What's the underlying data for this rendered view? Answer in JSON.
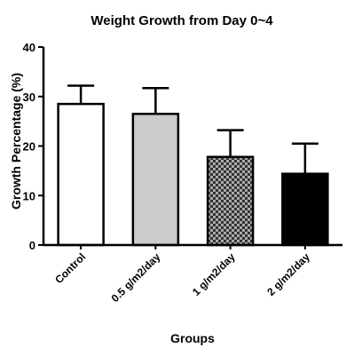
{
  "chart_data": {
    "type": "bar",
    "title": "Weight Growth from Day 0~4",
    "xlabel": "Groups",
    "ylabel": "Growth Percentage (%)",
    "ylim": [
      0,
      40
    ],
    "yticks": [
      0,
      10,
      20,
      30,
      40
    ],
    "categories": [
      "Control",
      "0.5 g/m2/day",
      "1 g/m2/day",
      "2 g/m2/day"
    ],
    "values": [
      28.5,
      26.5,
      17.8,
      14.4
    ],
    "error_upper": [
      3.7,
      5.2,
      5.4,
      6.1
    ],
    "bar_fills": [
      "white",
      "light-gray",
      "checkerboard",
      "black"
    ],
    "colors": {
      "bar_stroke": "#000000",
      "light_gray": "#cccccc",
      "checker_dark": "#333333",
      "checker_light": "#aaaaaa",
      "black": "#000000"
    }
  }
}
